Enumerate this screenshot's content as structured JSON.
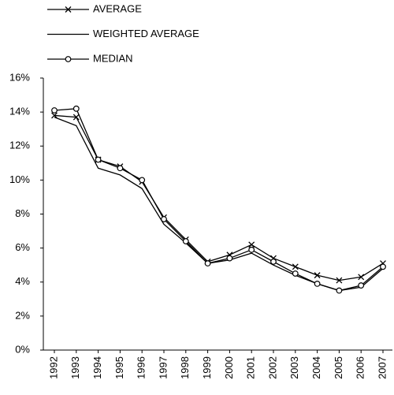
{
  "chart_data": {
    "type": "line",
    "categories": [
      "1992",
      "1993",
      "1994",
      "1995",
      "1996",
      "1997",
      "1998",
      "1999",
      "2000",
      "2001",
      "2002",
      "2003",
      "2004",
      "2005",
      "2006",
      "2007"
    ],
    "series": [
      {
        "name": "AVERAGE",
        "color": "#000000",
        "marker": "x",
        "values": [
          13.8,
          13.7,
          11.2,
          10.8,
          9.9,
          7.8,
          6.5,
          5.2,
          5.6,
          6.2,
          5.4,
          4.9,
          4.4,
          4.1,
          4.3,
          5.1
        ]
      },
      {
        "name": "WEIGHTED AVERAGE",
        "color": "#000000",
        "marker": "none",
        "values": [
          13.7,
          13.2,
          10.7,
          10.3,
          9.5,
          7.4,
          6.3,
          5.1,
          5.3,
          5.7,
          5.0,
          4.4,
          3.9,
          3.5,
          3.7,
          4.8
        ]
      },
      {
        "name": "MEDIAN",
        "color": "#000000",
        "marker": "circle",
        "values": [
          14.1,
          14.2,
          11.2,
          10.7,
          10.0,
          7.7,
          6.4,
          5.1,
          5.4,
          5.9,
          5.2,
          4.5,
          3.9,
          3.5,
          3.8,
          4.9
        ]
      }
    ],
    "ylim": [
      0,
      16
    ],
    "yticks": [
      {
        "value": 0,
        "label": "0%"
      },
      {
        "value": 2,
        "label": "2%"
      },
      {
        "value": 4,
        "label": "4%"
      },
      {
        "value": 6,
        "label": "6%"
      },
      {
        "value": 8,
        "label": "8%"
      },
      {
        "value": 10,
        "label": "10%"
      },
      {
        "value": 12,
        "label": "12%"
      },
      {
        "value": 14,
        "label": "14%"
      },
      {
        "value": 16,
        "label": "16%"
      }
    ],
    "grid": false,
    "legend": "top-left"
  }
}
